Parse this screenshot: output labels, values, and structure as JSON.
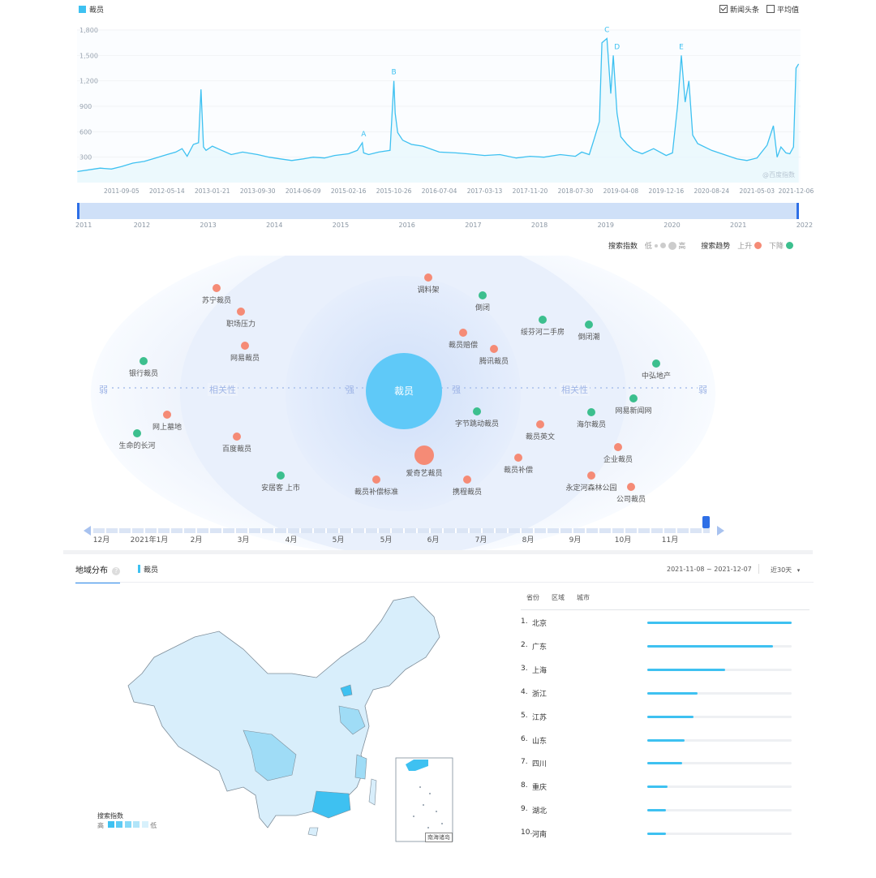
{
  "trend": {
    "legend_label": "裁员",
    "options": [
      {
        "label": "新闻头条",
        "checked": true
      },
      {
        "label": "平均值",
        "checked": false
      }
    ],
    "watermark": "@百度指数",
    "range_years": [
      "2011",
      "2012",
      "2013",
      "2014",
      "2015",
      "2016",
      "2017",
      "2018",
      "2019",
      "2020",
      "2021",
      "2022"
    ]
  },
  "chart_data": [
    {
      "type": "line",
      "series": [
        {
          "name": "裁员",
          "color": "#3ec1f1"
        }
      ],
      "x_start": "2011-01-01",
      "x_end": "2021-12-31",
      "ylim": [
        0,
        1900
      ],
      "ytick_labels": [
        "1,800",
        "1,500",
        "1,200",
        "900",
        "600",
        "300"
      ],
      "ytick_values": [
        1800,
        1500,
        1200,
        900,
        600,
        300
      ],
      "xtick_labels": [
        "2011-09-05",
        "2012-05-14",
        "2013-01-21",
        "2013-09-30",
        "2014-06-09",
        "2015-02-16",
        "2015-10-26",
        "2016-07-04",
        "2017-03-13",
        "2017-11-20",
        "2018-07-30",
        "2019-04-08",
        "2019-12-16",
        "2020-08-24",
        "2021-05-03",
        "2021-12-06"
      ],
      "x_values": [
        "2011-01-03",
        "2011-03-07",
        "2011-05-09",
        "2011-07-11",
        "2011-09-05",
        "2011-11-07",
        "2012-01-09",
        "2012-03-12",
        "2012-05-14",
        "2012-07-02",
        "2012-08-06",
        "2012-09-03",
        "2012-10-08",
        "2012-11-05",
        "2012-11-19",
        "2012-12-03",
        "2012-12-17",
        "2013-01-21",
        "2013-03-04",
        "2013-05-06",
        "2013-07-08",
        "2013-09-30",
        "2013-12-02",
        "2014-02-03",
        "2014-04-07",
        "2014-06-09",
        "2014-08-04",
        "2014-10-06",
        "2014-12-01",
        "2015-02-16",
        "2015-04-06",
        "2015-05-04",
        "2015-05-11",
        "2015-06-08",
        "2015-08-03",
        "2015-10-05",
        "2015-10-26",
        "2015-11-02",
        "2015-11-16",
        "2015-12-14",
        "2016-02-01",
        "2016-04-04",
        "2016-07-04",
        "2016-10-03",
        "2016-12-05",
        "2017-03-13",
        "2017-06-05",
        "2017-09-04",
        "2017-11-20",
        "2018-02-05",
        "2018-05-07",
        "2018-07-30",
        "2018-09-03",
        "2018-10-15",
        "2018-11-12",
        "2018-12-10",
        "2018-12-24",
        "2019-01-21",
        "2019-02-11",
        "2019-02-25",
        "2019-03-18",
        "2019-04-08",
        "2019-05-13",
        "2019-06-17",
        "2019-08-05",
        "2019-10-07",
        "2019-12-16",
        "2020-01-20",
        "2020-02-17",
        "2020-03-09",
        "2020-03-30",
        "2020-04-20",
        "2020-05-11",
        "2020-06-08",
        "2020-08-24",
        "2020-11-02",
        "2021-01-11",
        "2021-03-08",
        "2021-05-03",
        "2021-06-28",
        "2021-08-02",
        "2021-08-23",
        "2021-09-13",
        "2021-10-11",
        "2021-11-01",
        "2021-11-22",
        "2021-12-06",
        "2021-12-20"
      ],
      "y_values": [
        130,
        150,
        170,
        160,
        190,
        230,
        250,
        290,
        330,
        360,
        400,
        310,
        450,
        470,
        1100,
        420,
        380,
        430,
        390,
        330,
        360,
        330,
        300,
        280,
        260,
        280,
        300,
        290,
        320,
        340,
        380,
        470,
        350,
        330,
        360,
        380,
        1200,
        820,
        590,
        500,
        450,
        430,
        360,
        350,
        340,
        320,
        330,
        290,
        310,
        300,
        330,
        310,
        360,
        330,
        520,
        720,
        1650,
        1700,
        1050,
        1500,
        820,
        540,
        450,
        380,
        340,
        400,
        320,
        350,
        900,
        1500,
        950,
        1200,
        560,
        460,
        380,
        330,
        280,
        260,
        290,
        440,
        670,
        300,
        420,
        350,
        340,
        420,
        1350,
        1400
      ],
      "annotations": [
        {
          "label": "A",
          "x": "2015-05-11",
          "y": 470
        },
        {
          "label": "B",
          "x": "2015-10-26",
          "y": 1200
        },
        {
          "label": "C",
          "x": "2019-01-21",
          "y": 1700
        },
        {
          "label": "D",
          "x": "2019-03-18",
          "y": 1500
        },
        {
          "label": "E",
          "x": "2020-03-09",
          "y": 1500
        }
      ]
    },
    {
      "type": "scatter",
      "title": "",
      "center_label": "裁员",
      "bubbles": [
        {
          "label": "调料架",
          "trend": "up"
        },
        {
          "label": "倒闭",
          "trend": "down"
        },
        {
          "label": "苏宁裁员",
          "trend": "up"
        },
        {
          "label": "职场压力",
          "trend": "up"
        },
        {
          "label": "绥芬河二手房",
          "trend": "down"
        },
        {
          "label": "倒闭潮",
          "trend": "down"
        },
        {
          "label": "裁员赔偿",
          "trend": "up"
        },
        {
          "label": "腾讯裁员",
          "trend": "up"
        },
        {
          "label": "网易裁员",
          "trend": "up"
        },
        {
          "label": "银行裁员",
          "trend": "down"
        },
        {
          "label": "中弘地产",
          "trend": "down"
        },
        {
          "label": "网易新闻网",
          "trend": "down"
        },
        {
          "label": "网上墓地",
          "trend": "up"
        },
        {
          "label": "字节跳动裁员",
          "trend": "down"
        },
        {
          "label": "海尔裁员",
          "trend": "down"
        },
        {
          "label": "裁员英文",
          "trend": "up"
        },
        {
          "label": "生命的长河",
          "trend": "down"
        },
        {
          "label": "百度裁员",
          "trend": "up"
        },
        {
          "label": "企业裁员",
          "trend": "up"
        },
        {
          "label": "爱奇艺裁员",
          "trend": "up"
        },
        {
          "label": "裁员补偿",
          "trend": "up"
        },
        {
          "label": "安居客 上市",
          "trend": "down"
        },
        {
          "label": "裁员补偿标准",
          "trend": "up"
        },
        {
          "label": "携程裁员",
          "trend": "up"
        },
        {
          "label": "永定河森林公园",
          "trend": "up"
        },
        {
          "label": "公司裁员",
          "trend": "up"
        }
      ]
    }
  ],
  "relation": {
    "legend_index_label": "搜索指数",
    "legend_low": "低",
    "legend_high": "高",
    "legend_trend_label": "搜索趋势",
    "legend_up": "上升",
    "legend_down": "下降",
    "color_up": "#f58b76",
    "color_down": "#3cbf8e",
    "axis_weak": "弱",
    "axis_relevance": "相关性",
    "axis_strong": "强",
    "months": [
      "12月",
      "2021年1月",
      "2月",
      "3月",
      "4月",
      "5月",
      "5月",
      "6月",
      "7月",
      "8月",
      "9月",
      "10月",
      "11月"
    ]
  },
  "region": {
    "tab_label": "地域分布",
    "keyword": "裁员",
    "date_range": "2021-11-08 ~ 2021-12-07",
    "period": "近30天",
    "sub_tabs": [
      "省份",
      "区域",
      "城市"
    ],
    "map_legend_title": "搜索指数",
    "map_legend_high": "高",
    "map_legend_low": "低",
    "south_sea_label": "南海诸岛",
    "rankings": [
      {
        "rank": "1.",
        "name": "北京",
        "value": 100
      },
      {
        "rank": "2.",
        "name": "广东",
        "value": 87
      },
      {
        "rank": "3.",
        "name": "上海",
        "value": 54
      },
      {
        "rank": "4.",
        "name": "浙江",
        "value": 35
      },
      {
        "rank": "5.",
        "name": "江苏",
        "value": 32
      },
      {
        "rank": "6.",
        "name": "山东",
        "value": 26
      },
      {
        "rank": "7.",
        "name": "四川",
        "value": 24
      },
      {
        "rank": "8.",
        "name": "重庆",
        "value": 14
      },
      {
        "rank": "9.",
        "name": "湖北",
        "value": 13
      },
      {
        "rank": "10.",
        "name": "河南",
        "value": 13
      }
    ]
  }
}
